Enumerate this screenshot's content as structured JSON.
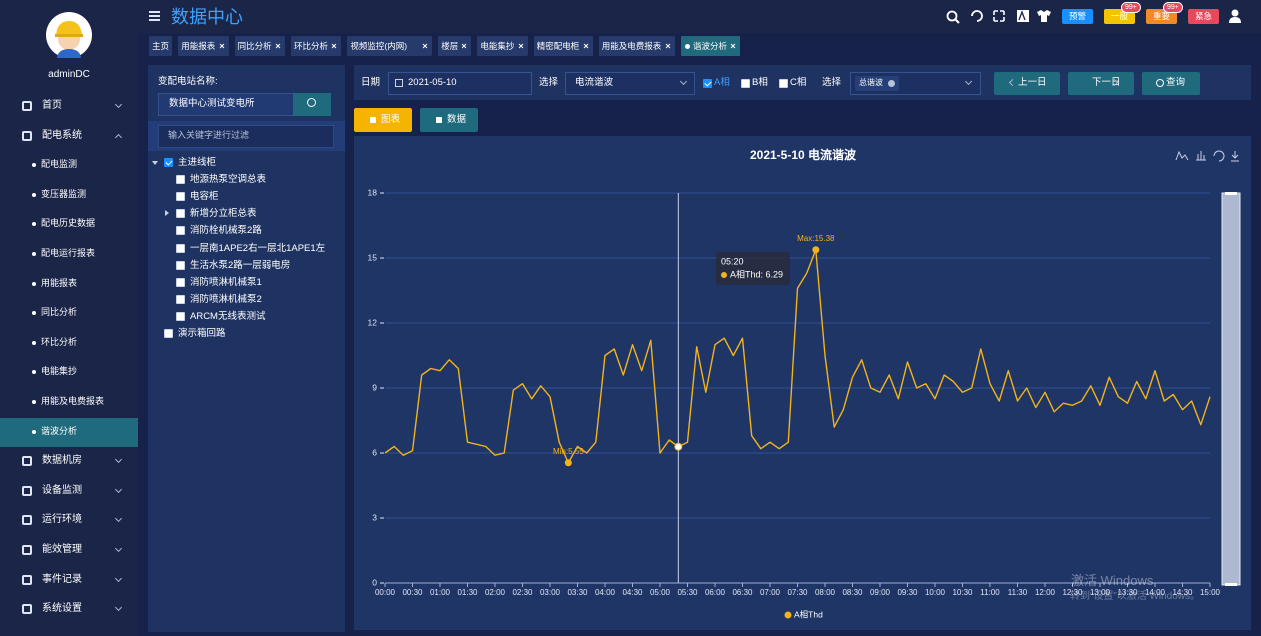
{
  "sidebar": {
    "user": "adminDC",
    "menu": [
      {
        "label": "首页"
      },
      {
        "label": "配电系统",
        "expanded": true,
        "children": [
          {
            "label": "配电监测"
          },
          {
            "label": "变压器监测"
          },
          {
            "label": "配电历史数据"
          },
          {
            "label": "配电运行报表"
          },
          {
            "label": "用能报表"
          },
          {
            "label": "同比分析"
          },
          {
            "label": "环比分析"
          },
          {
            "label": "电能集抄"
          },
          {
            "label": "用能及电费报表"
          },
          {
            "label": "谐波分析",
            "active": true
          }
        ]
      },
      {
        "label": "数据机房"
      },
      {
        "label": "设备监测"
      },
      {
        "label": "运行环境"
      },
      {
        "label": "能效管理"
      },
      {
        "label": "事件记录"
      },
      {
        "label": "系统设置"
      }
    ]
  },
  "header": {
    "title": "数据中心",
    "alerts": [
      {
        "label": "预警",
        "color": "#1890ff"
      },
      {
        "label": "一般",
        "badge": "99+",
        "color": "#f2c500"
      },
      {
        "label": "重要",
        "badge": "99+",
        "color": "#f08a24"
      },
      {
        "label": "紧急",
        "color": "#e8485c"
      }
    ]
  },
  "tabs": [
    {
      "label": "主页"
    },
    {
      "label": "用能报表",
      "closable": true
    },
    {
      "label": "同比分析",
      "closable": true
    },
    {
      "label": "环比分析",
      "closable": true
    },
    {
      "label": "视频监控(内网)",
      "closable": true
    },
    {
      "label": "楼层",
      "closable": true
    },
    {
      "label": "电能集抄",
      "closable": true
    },
    {
      "label": "精密配电柜",
      "closable": true
    },
    {
      "label": "用能及电费报表",
      "closable": true
    },
    {
      "label": "谐波分析",
      "closable": true,
      "active": true
    }
  ],
  "tree": {
    "station_label": "变配电站名称:",
    "station": "数据中心测试变电所",
    "filter_placeholder": "输入关键字进行过滤",
    "nodes": [
      {
        "label": "主进线柜",
        "checked": true,
        "expanded": true,
        "children": [
          {
            "label": "地源热泵空调总表"
          },
          {
            "label": "电容柜"
          },
          {
            "label": "新增分立柜总表",
            "has_children": true
          },
          {
            "label": "消防栓机械泵2路"
          },
          {
            "label": "一层南1APE2右一层北1APE1左"
          },
          {
            "label": "生活水泵2路一层弱电房"
          },
          {
            "label": "消防喷淋机械泵1"
          },
          {
            "label": "消防喷淋机械泵2"
          },
          {
            "label": "ARCM无线表测试"
          }
        ]
      },
      {
        "label": "演示箱回路"
      }
    ]
  },
  "toolbar": {
    "date_label": "日期",
    "date": "2021-05-10",
    "select_label": "选择",
    "select_value": "电流谐波",
    "phases": [
      {
        "label": "A相",
        "checked": true
      },
      {
        "label": "B相"
      },
      {
        "label": "C相"
      }
    ],
    "select2_label": "选择",
    "select2_value": "总谐波",
    "prev": "上一日",
    "next": "下一日",
    "query": "查询"
  },
  "view_buttons": [
    {
      "label": "图表",
      "active": true
    },
    {
      "label": "数据"
    }
  ],
  "chart_data": {
    "type": "line",
    "title": "2021-5-10  电流谐波",
    "categories": [
      "00:00",
      null,
      null,
      "00:30",
      null,
      null,
      "01:00",
      null,
      null,
      "01:30",
      null,
      null,
      "02:00",
      null,
      null,
      "02:30",
      null,
      null,
      "03:00",
      null,
      null,
      "03:30",
      null,
      null,
      "04:00",
      null,
      null,
      "04:30",
      null,
      null,
      "05:00",
      null,
      null,
      "05:30",
      null,
      null,
      "06:00",
      null,
      null,
      "06:30",
      null,
      null,
      "07:00",
      null,
      null,
      "07:30",
      null,
      null,
      "08:00",
      null,
      null,
      "08:30",
      null,
      null,
      "09:00",
      null,
      null,
      "09:30",
      null,
      null,
      "10:00",
      null,
      null,
      "10:30",
      null,
      null,
      "11:00",
      null,
      null,
      "11:30",
      null,
      null,
      "12:00",
      null,
      null,
      "12:30",
      null,
      null,
      "13:00",
      null,
      null,
      "13:30",
      null,
      null,
      "14:00",
      null,
      null,
      "14:30",
      null,
      null,
      "15:00"
    ],
    "series": [
      {
        "name": "A相Thd",
        "color": "#f2b31b",
        "values": [
          6.0,
          6.3,
          5.9,
          6.1,
          9.6,
          9.9,
          9.8,
          10.3,
          9.9,
          6.5,
          6.4,
          6.3,
          5.9,
          6.0,
          8.9,
          9.2,
          8.5,
          9.1,
          8.6,
          6.5,
          5.55,
          6.3,
          6.0,
          6.5,
          10.5,
          10.8,
          9.6,
          11.0,
          9.8,
          11.2,
          6.0,
          6.6,
          6.29,
          6.5,
          10.9,
          8.8,
          11.0,
          11.3,
          10.5,
          11.3,
          6.8,
          6.2,
          6.5,
          6.2,
          6.5,
          13.6,
          14.3,
          15.38,
          10.5,
          7.2,
          8.0,
          9.5,
          10.3,
          9.0,
          8.8,
          9.6,
          8.5,
          10.2,
          9.0,
          9.2,
          8.5,
          9.6,
          9.3,
          8.8,
          9.0,
          10.8,
          9.2,
          8.4,
          9.8,
          8.4,
          9.0,
          8.1,
          8.8,
          7.9,
          8.3,
          8.2,
          8.4,
          9.1,
          8.2,
          9.5,
          8.6,
          8.3,
          9.3,
          8.5,
          9.8,
          8.4,
          8.7,
          8.0,
          8.4,
          7.3,
          8.6
        ]
      }
    ],
    "ylim": [
      0,
      18
    ],
    "yticks": [
      0,
      3,
      6,
      9,
      12,
      15,
      18
    ],
    "grid": true,
    "legend": "bottom",
    "max_label": "Max:15.38",
    "min_label": "Min:5.55",
    "tooltip": {
      "x": "05:20",
      "text": "A相Thd: 6.29"
    }
  },
  "watermark": {
    "line1": "激活 Windows",
    "line2": "转到“设置”以激活 Windows。"
  }
}
